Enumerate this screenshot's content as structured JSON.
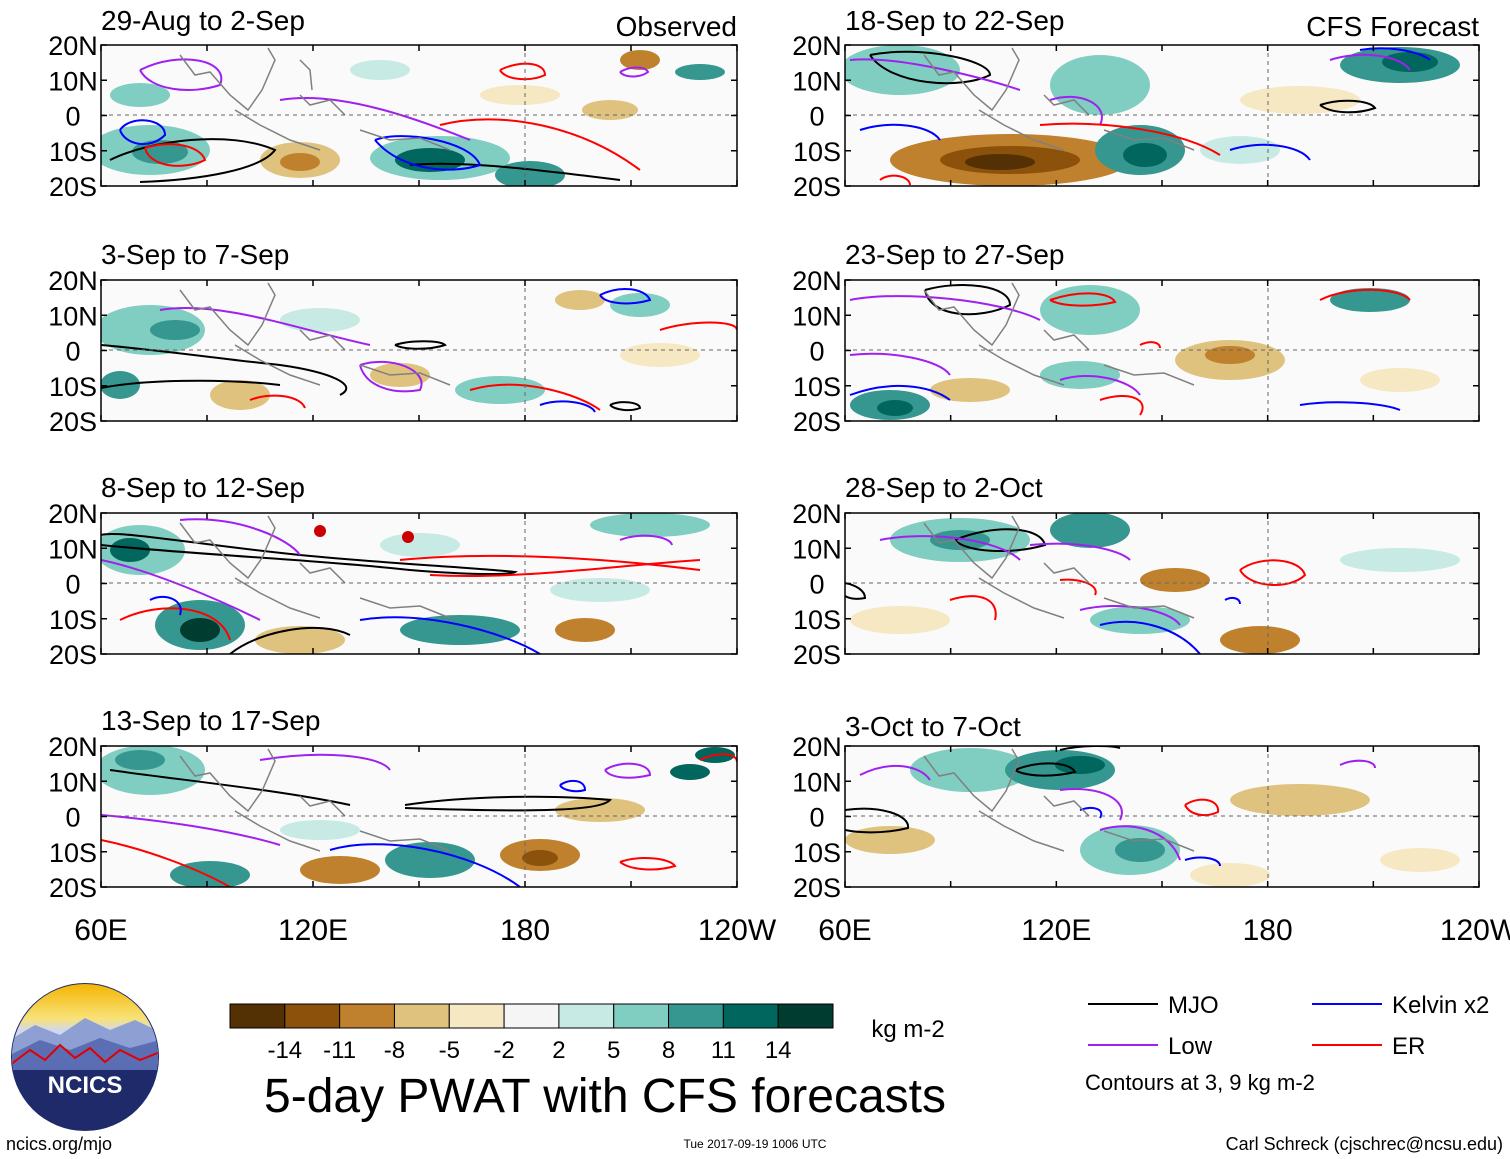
{
  "panels_observed": {
    "header": "Observed",
    "items": [
      {
        "label": "29-Aug to 2-Sep"
      },
      {
        "label": "3-Sep to 7-Sep"
      },
      {
        "label": "8-Sep to 12-Sep"
      },
      {
        "label": "13-Sep to 17-Sep"
      }
    ]
  },
  "panels_forecast": {
    "header": "CFS Forecast",
    "items": [
      {
        "label": "18-Sep to 22-Sep"
      },
      {
        "label": "23-Sep to 27-Sep"
      },
      {
        "label": "28-Sep to 2-Oct"
      },
      {
        "label": "3-Oct to 7-Oct"
      }
    ]
  },
  "lat_labels": [
    "20N",
    "10N",
    "0",
    "10S",
    "20S"
  ],
  "lon_labels": [
    "60E",
    "120E",
    "180",
    "120W"
  ],
  "colorbar": {
    "levels": [
      "-14",
      "-11",
      "-8",
      "-5",
      "-2",
      "2",
      "5",
      "8",
      "11",
      "14"
    ],
    "colors": [
      "#543005",
      "#8c510a",
      "#bf812d",
      "#dfc27d",
      "#f6e8c3",
      "#f5f5f5",
      "#c7eae5",
      "#80cdc1",
      "#35978f",
      "#01665e",
      "#003c30"
    ],
    "units": "kg m-2"
  },
  "legend": {
    "items": [
      {
        "label": "MJO",
        "color": "#000000"
      },
      {
        "label": "Kelvin x2",
        "color": "#0000ff"
      },
      {
        "label": "Low",
        "color": "#a020f0"
      },
      {
        "label": "ER",
        "color": "#ff0000"
      }
    ],
    "note": "Contours at 3, 9 kg m-2"
  },
  "title": "5-day PWAT with CFS forecasts",
  "logo_text": "NCICS",
  "footer": {
    "left": "ncics.org/mjo",
    "center": "Tue 2017-09-19 1006 UTC",
    "right": "Carl Schreck (cjschrec@ncsu.edu)"
  }
}
